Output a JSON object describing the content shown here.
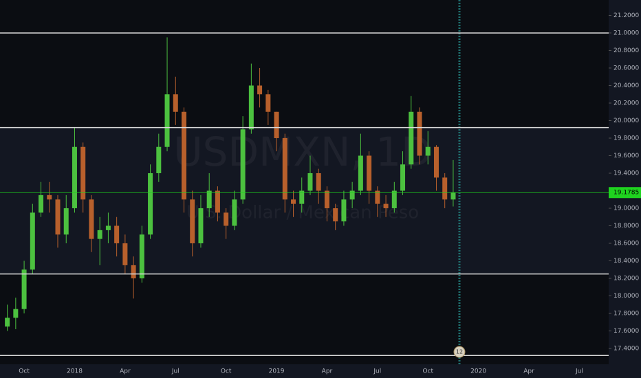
{
  "chart_data": {
    "type": "candlestick",
    "watermark": "USDMXN, 1D",
    "watermark_subtitle": "U.S. Dollar / Mexican Peso",
    "categories": [
      null,
      null,
      "Oct",
      null,
      null,
      null,
      null,
      null,
      "2018",
      null,
      null,
      null,
      null,
      null,
      "Apr",
      null,
      null,
      null,
      null,
      null,
      "Jul",
      null,
      null,
      null,
      null,
      null,
      "Oct",
      null,
      null,
      null,
      null,
      null,
      "2019",
      null,
      null,
      null,
      null,
      null,
      "Apr",
      null,
      null,
      null,
      null,
      null,
      "Jul",
      null,
      null,
      null,
      null,
      null,
      "Oct",
      null,
      null,
      null,
      null,
      null,
      "2020",
      null,
      null,
      null,
      null,
      null,
      "Apr",
      null,
      null,
      null,
      null,
      null,
      "Jul",
      null,
      null
    ],
    "open": [
      17.65,
      17.75,
      17.85,
      18.3,
      18.95,
      19.15,
      19.1,
      18.7,
      19.0,
      19.7,
      19.1,
      18.65,
      18.75,
      18.8,
      18.6,
      18.35,
      18.2,
      18.7,
      19.4,
      19.7,
      20.3,
      20.1,
      19.1,
      18.6,
      19.0,
      19.2,
      18.95,
      18.8,
      19.1,
      19.9,
      20.4,
      20.3,
      20.1,
      19.8,
      19.1,
      19.05,
      19.2,
      19.4,
      19.2,
      19.0,
      18.85,
      19.1,
      19.2,
      19.6,
      19.2,
      19.05,
      19.0,
      19.2,
      19.5,
      20.1,
      19.6,
      19.7,
      19.35,
      19.1,
      null,
      null,
      null,
      null,
      null,
      null,
      null,
      null,
      null,
      null,
      null,
      null,
      null,
      null,
      null,
      null,
      null
    ],
    "high": [
      17.9,
      17.98,
      18.4,
      19.05,
      19.3,
      19.3,
      19.15,
      19.15,
      19.92,
      19.75,
      19.15,
      18.9,
      18.95,
      18.9,
      18.7,
      18.45,
      18.8,
      19.5,
      19.85,
      20.95,
      20.5,
      20.15,
      19.2,
      19.15,
      19.4,
      19.25,
      19.0,
      19.2,
      20.05,
      20.65,
      20.6,
      20.35,
      20.1,
      19.85,
      19.2,
      19.35,
      19.6,
      19.45,
      19.25,
      19.05,
      19.2,
      19.3,
      19.85,
      19.65,
      19.25,
      19.15,
      19.3,
      19.65,
      20.28,
      20.15,
      19.88,
      19.72,
      19.4,
      19.55,
      null,
      null,
      null,
      null,
      null,
      null,
      null,
      null,
      null,
      null,
      null,
      null,
      null,
      null,
      null,
      null,
      null
    ],
    "low": [
      17.6,
      17.62,
      17.8,
      18.25,
      18.9,
      18.95,
      18.55,
      18.6,
      18.95,
      18.95,
      18.5,
      18.35,
      18.6,
      18.45,
      18.25,
      17.97,
      18.15,
      18.65,
      19.3,
      19.65,
      19.95,
      18.95,
      18.45,
      18.55,
      18.9,
      18.85,
      18.65,
      18.75,
      19.05,
      19.85,
      20.15,
      19.95,
      19.65,
      18.95,
      18.9,
      18.95,
      19.15,
      19.05,
      18.85,
      18.75,
      18.8,
      19.0,
      19.15,
      19.05,
      18.9,
      18.9,
      18.95,
      19.15,
      19.45,
      19.5,
      19.5,
      19.2,
      19.0,
      19.02,
      null,
      null,
      null,
      null,
      null,
      null,
      null,
      null,
      null,
      null,
      null,
      null,
      null,
      null,
      null,
      null,
      null
    ],
    "close": [
      17.75,
      17.85,
      18.3,
      18.95,
      19.15,
      19.1,
      18.7,
      19.0,
      19.7,
      19.1,
      18.65,
      18.75,
      18.8,
      18.6,
      18.35,
      18.2,
      18.7,
      19.4,
      19.7,
      20.3,
      20.1,
      19.1,
      18.6,
      19.0,
      19.2,
      18.95,
      18.8,
      19.1,
      19.9,
      20.4,
      20.3,
      20.1,
      19.8,
      19.1,
      19.05,
      19.2,
      19.4,
      19.2,
      19.0,
      18.85,
      19.1,
      19.2,
      19.6,
      19.2,
      19.05,
      19.0,
      19.2,
      19.5,
      20.1,
      19.6,
      19.7,
      19.35,
      19.1,
      19.1785,
      null,
      null,
      null,
      null,
      null,
      null,
      null,
      null,
      null,
      null,
      null,
      null,
      null,
      null,
      null,
      null,
      null
    ],
    "up_color": "#4cc13f",
    "down_color": "#b8602c",
    "horizontal_lines": [
      21.0,
      19.92,
      18.25,
      17.32
    ],
    "line_color": "#d9d9d9",
    "last_price": 19.1785,
    "last_price_color": "#1fd31f",
    "event_count": "12",
    "ylim": [
      17.22,
      21.376
    ],
    "yticks": [
      {
        "value": 17.4,
        "label": "17.4000"
      },
      {
        "value": 17.6,
        "label": "17.6000"
      },
      {
        "value": 17.8,
        "label": "17.8000"
      },
      {
        "value": 18.0,
        "label": "18.0000"
      },
      {
        "value": 18.2,
        "label": "18.2000"
      },
      {
        "value": 18.4,
        "label": "18.4000"
      },
      {
        "value": 18.6,
        "label": "18.6000"
      },
      {
        "value": 18.8,
        "label": "18.8000"
      },
      {
        "value": 19.0,
        "label": "19.0000"
      },
      {
        "value": 19.2,
        "label": "19.2000"
      },
      {
        "value": 19.4,
        "label": "19.4000"
      },
      {
        "value": 19.6,
        "label": "19.6000"
      },
      {
        "value": 19.8,
        "label": "19.8000"
      },
      {
        "value": 20.0,
        "label": "20.0000"
      },
      {
        "value": 20.2,
        "label": "20.2000"
      },
      {
        "value": 20.4,
        "label": "20.4000"
      },
      {
        "value": 20.6,
        "label": "20.6000"
      },
      {
        "value": 20.8,
        "label": "20.8000"
      },
      {
        "value": 21.0,
        "label": "21.0000"
      },
      {
        "value": 21.2,
        "label": "21.2000"
      }
    ]
  }
}
